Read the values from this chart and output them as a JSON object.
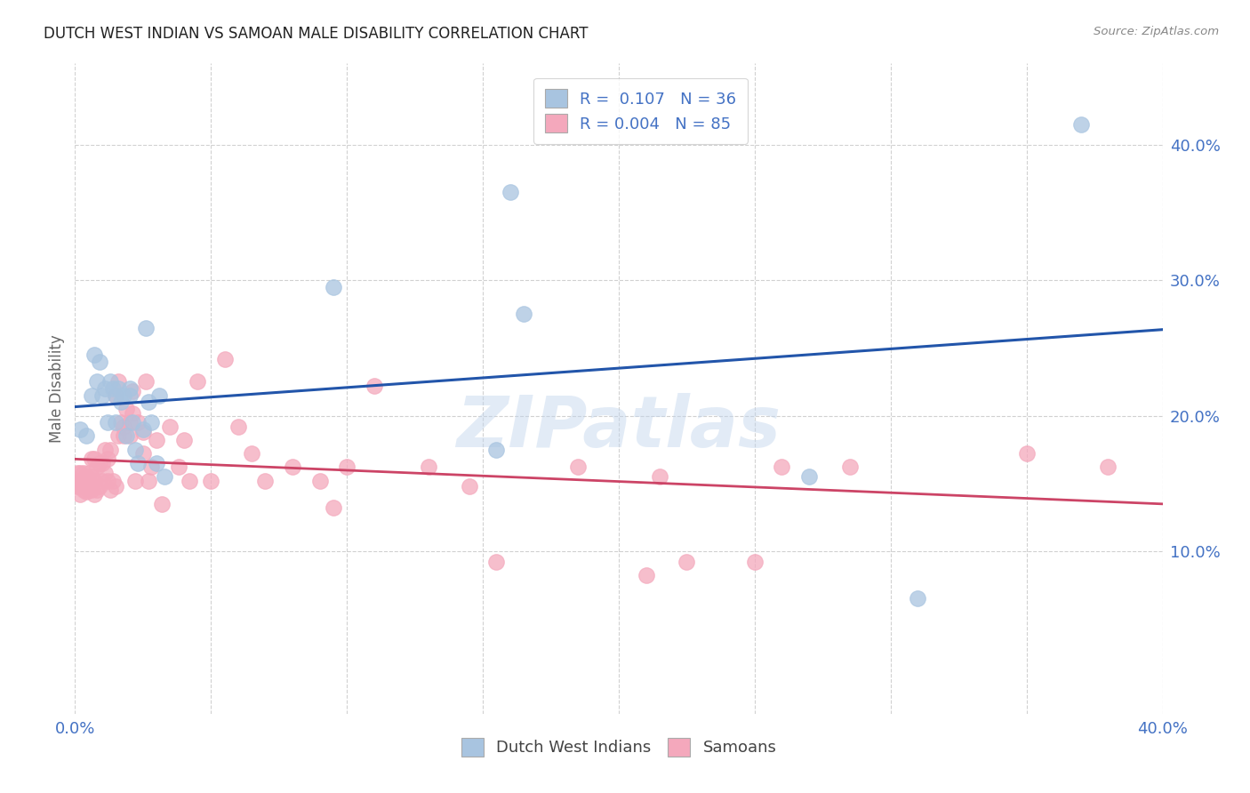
{
  "title": "DUTCH WEST INDIAN VS SAMOAN MALE DISABILITY CORRELATION CHART",
  "source": "Source: ZipAtlas.com",
  "ylabel": "Male Disability",
  "legend_label1": "Dutch West Indians",
  "legend_label2": "Samoans",
  "legend_r1": "R =  0.107",
  "legend_n1": "N = 36",
  "legend_r2": "R = 0.004",
  "legend_n2": "N = 85",
  "xlim": [
    0.0,
    0.4
  ],
  "ylim": [
    -0.02,
    0.46
  ],
  "yticks": [
    0.1,
    0.2,
    0.3,
    0.4
  ],
  "ytick_labels": [
    "10.0%",
    "20.0%",
    "30.0%",
    "40.0%"
  ],
  "xticks": [
    0.0,
    0.05,
    0.1,
    0.15,
    0.2,
    0.25,
    0.3,
    0.35,
    0.4
  ],
  "xtick_labels": [
    "0.0%",
    "",
    "",
    "",
    "",
    "",
    "",
    "",
    "40.0%"
  ],
  "blue_color": "#a8c4e0",
  "pink_color": "#f4a8bc",
  "blue_line_color": "#2255aa",
  "pink_line_color": "#cc4466",
  "watermark": "ZIPatlas",
  "dutch_x": [
    0.002,
    0.004,
    0.006,
    0.007,
    0.008,
    0.009,
    0.01,
    0.011,
    0.012,
    0.013,
    0.014,
    0.015,
    0.015,
    0.016,
    0.017,
    0.018,
    0.019,
    0.02,
    0.02,
    0.021,
    0.022,
    0.023,
    0.025,
    0.026,
    0.027,
    0.028,
    0.03,
    0.031,
    0.033,
    0.095,
    0.155,
    0.16,
    0.165,
    0.27,
    0.31,
    0.37
  ],
  "dutch_y": [
    0.19,
    0.185,
    0.215,
    0.245,
    0.225,
    0.24,
    0.215,
    0.22,
    0.195,
    0.225,
    0.22,
    0.215,
    0.195,
    0.22,
    0.21,
    0.215,
    0.185,
    0.22,
    0.215,
    0.195,
    0.175,
    0.165,
    0.19,
    0.265,
    0.21,
    0.195,
    0.165,
    0.215,
    0.155,
    0.295,
    0.175,
    0.365,
    0.275,
    0.155,
    0.065,
    0.415
  ],
  "samoan_x": [
    0.001,
    0.001,
    0.001,
    0.002,
    0.002,
    0.002,
    0.002,
    0.003,
    0.003,
    0.003,
    0.003,
    0.004,
    0.004,
    0.004,
    0.005,
    0.005,
    0.005,
    0.006,
    0.006,
    0.006,
    0.006,
    0.007,
    0.007,
    0.007,
    0.008,
    0.008,
    0.009,
    0.009,
    0.01,
    0.01,
    0.011,
    0.011,
    0.012,
    0.012,
    0.013,
    0.013,
    0.014,
    0.015,
    0.015,
    0.016,
    0.016,
    0.017,
    0.018,
    0.018,
    0.019,
    0.02,
    0.02,
    0.021,
    0.021,
    0.022,
    0.023,
    0.025,
    0.025,
    0.026,
    0.027,
    0.028,
    0.03,
    0.032,
    0.035,
    0.038,
    0.04,
    0.042,
    0.045,
    0.05,
    0.055,
    0.06,
    0.065,
    0.07,
    0.08,
    0.09,
    0.095,
    0.1,
    0.11,
    0.13,
    0.145,
    0.155,
    0.185,
    0.21,
    0.215,
    0.225,
    0.25,
    0.26,
    0.285,
    0.35,
    0.38
  ],
  "samoan_y": [
    0.148,
    0.152,
    0.158,
    0.142,
    0.148,
    0.152,
    0.158,
    0.145,
    0.148,
    0.152,
    0.158,
    0.144,
    0.148,
    0.155,
    0.145,
    0.15,
    0.158,
    0.145,
    0.148,
    0.155,
    0.168,
    0.142,
    0.152,
    0.168,
    0.145,
    0.162,
    0.148,
    0.165,
    0.152,
    0.165,
    0.158,
    0.175,
    0.152,
    0.168,
    0.145,
    0.175,
    0.152,
    0.148,
    0.215,
    0.185,
    0.225,
    0.195,
    0.185,
    0.192,
    0.205,
    0.185,
    0.195,
    0.202,
    0.218,
    0.152,
    0.195,
    0.188,
    0.172,
    0.225,
    0.152,
    0.162,
    0.182,
    0.135,
    0.192,
    0.162,
    0.182,
    0.152,
    0.225,
    0.152,
    0.242,
    0.192,
    0.172,
    0.152,
    0.162,
    0.152,
    0.132,
    0.162,
    0.222,
    0.162,
    0.148,
    0.092,
    0.162,
    0.082,
    0.155,
    0.092,
    0.092,
    0.162,
    0.162,
    0.172,
    0.162
  ]
}
